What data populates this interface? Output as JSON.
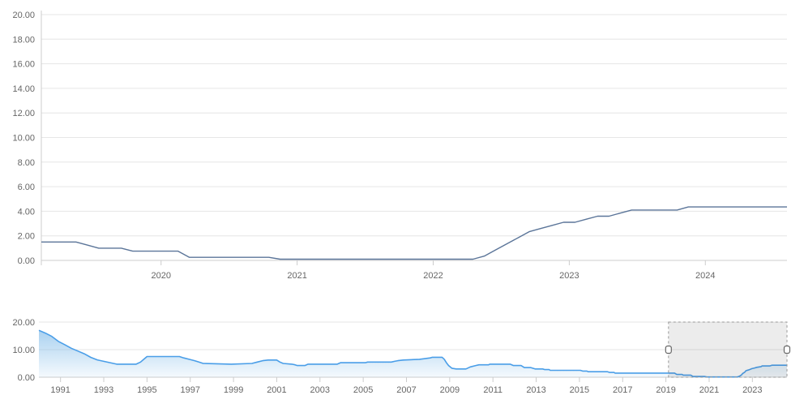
{
  "colors": {
    "background": "#ffffff",
    "main_line": "#5b7599",
    "nav_line": "#4a9ee8",
    "nav_fill_top": "rgba(125,185,232,0.65)",
    "nav_fill_bottom": "rgba(125,185,232,0.08)",
    "gridline": "#e6e6e6",
    "axis_line": "#cccccc",
    "tick_label": "#666666",
    "selection_fill": "rgba(40,40,40,0.09)",
    "selection_border": "#999999",
    "handle_fill": "#ffffff",
    "handle_border": "#666666"
  },
  "chart_data": {
    "type": "line",
    "title": "",
    "legend": "none",
    "grid": "on",
    "main_chart": {
      "type": "line",
      "x_range": [
        2019.12,
        2024.6
      ],
      "ylim": [
        0,
        20
      ],
      "y_ticks": [
        {
          "value": 0,
          "label": "0.00"
        },
        {
          "value": 2,
          "label": "2.00"
        },
        {
          "value": 4,
          "label": "4.00"
        },
        {
          "value": 6,
          "label": "6.00"
        },
        {
          "value": 8,
          "label": "8.00"
        },
        {
          "value": 10,
          "label": "10.00"
        },
        {
          "value": 12,
          "label": "12.00"
        },
        {
          "value": 14,
          "label": "14.00"
        },
        {
          "value": 16,
          "label": "16.00"
        },
        {
          "value": 18,
          "label": "18.00"
        },
        {
          "value": 20,
          "label": "20.00"
        }
      ],
      "x_ticks": [
        {
          "value": 2020,
          "label": "2020"
        },
        {
          "value": 2021,
          "label": "2021"
        },
        {
          "value": 2022,
          "label": "2022"
        },
        {
          "value": 2023,
          "label": "2023"
        },
        {
          "value": 2024,
          "label": "2024"
        }
      ],
      "points": [
        [
          2019.12,
          1.5
        ],
        [
          2019.375,
          1.5
        ],
        [
          2019.458,
          1.25
        ],
        [
          2019.542,
          1.0
        ],
        [
          2019.708,
          1.0
        ],
        [
          2019.792,
          0.75
        ],
        [
          2020.125,
          0.75
        ],
        [
          2020.208,
          0.25
        ],
        [
          2020.792,
          0.25
        ],
        [
          2020.875,
          0.1
        ],
        [
          2022.292,
          0.1
        ],
        [
          2022.375,
          0.35
        ],
        [
          2022.458,
          0.85
        ],
        [
          2022.542,
          1.35
        ],
        [
          2022.625,
          1.85
        ],
        [
          2022.708,
          2.35
        ],
        [
          2022.792,
          2.6
        ],
        [
          2022.875,
          2.85
        ],
        [
          2022.958,
          3.1
        ],
        [
          2023.042,
          3.1
        ],
        [
          2023.125,
          3.35
        ],
        [
          2023.208,
          3.6
        ],
        [
          2023.292,
          3.6
        ],
        [
          2023.375,
          3.85
        ],
        [
          2023.458,
          4.1
        ],
        [
          2023.792,
          4.1
        ],
        [
          2023.875,
          4.35
        ],
        [
          2024.6,
          4.35
        ]
      ]
    },
    "navigator": {
      "type": "area",
      "x_range": [
        1990.0,
        2024.6
      ],
      "ylim": [
        0,
        20
      ],
      "y_ticks": [
        {
          "value": 0,
          "label": "0.00"
        },
        {
          "value": 10,
          "label": "10.00"
        },
        {
          "value": 20,
          "label": "20.00"
        }
      ],
      "x_ticks": [
        {
          "value": 1991,
          "label": "1991"
        },
        {
          "value": 1993,
          "label": "1993"
        },
        {
          "value": 1995,
          "label": "1995"
        },
        {
          "value": 1997,
          "label": "1997"
        },
        {
          "value": 1999,
          "label": "1999"
        },
        {
          "value": 2001,
          "label": "2001"
        },
        {
          "value": 2003,
          "label": "2003"
        },
        {
          "value": 2005,
          "label": "2005"
        },
        {
          "value": 2007,
          "label": "2007"
        },
        {
          "value": 2009,
          "label": "2009"
        },
        {
          "value": 2011,
          "label": "2011"
        },
        {
          "value": 2013,
          "label": "2013"
        },
        {
          "value": 2015,
          "label": "2015"
        },
        {
          "value": 2017,
          "label": "2017"
        },
        {
          "value": 2019,
          "label": "2019"
        },
        {
          "value": 2021,
          "label": "2021"
        },
        {
          "value": 2023,
          "label": "2023"
        }
      ],
      "selected_range": [
        2019.12,
        2024.6
      ],
      "points": [
        [
          1990.0,
          17.0
        ],
        [
          1990.3,
          16.0
        ],
        [
          1990.6,
          14.8
        ],
        [
          1990.9,
          13.0
        ],
        [
          1991.2,
          11.8
        ],
        [
          1991.5,
          10.5
        ],
        [
          1991.8,
          9.5
        ],
        [
          1992.1,
          8.5
        ],
        [
          1992.4,
          7.2
        ],
        [
          1992.7,
          6.3
        ],
        [
          1993.0,
          5.75
        ],
        [
          1993.3,
          5.25
        ],
        [
          1993.6,
          4.75
        ],
        [
          1994.5,
          4.75
        ],
        [
          1994.7,
          5.5
        ],
        [
          1994.85,
          6.5
        ],
        [
          1995.0,
          7.5
        ],
        [
          1996.5,
          7.5
        ],
        [
          1996.7,
          7.0
        ],
        [
          1996.95,
          6.5
        ],
        [
          1997.2,
          6.0
        ],
        [
          1997.4,
          5.5
        ],
        [
          1997.6,
          5.0
        ],
        [
          1998.9,
          4.75
        ],
        [
          1999.85,
          5.0
        ],
        [
          2000.1,
          5.5
        ],
        [
          2000.35,
          6.0
        ],
        [
          2000.6,
          6.25
        ],
        [
          2001.0,
          6.25
        ],
        [
          2001.15,
          5.5
        ],
        [
          2001.3,
          5.0
        ],
        [
          2001.7,
          4.75
        ],
        [
          2001.85,
          4.5
        ],
        [
          2001.95,
          4.25
        ],
        [
          2002.3,
          4.25
        ],
        [
          2002.45,
          4.75
        ],
        [
          2003.8,
          4.75
        ],
        [
          2003.95,
          5.25
        ],
        [
          2005.1,
          5.25
        ],
        [
          2005.2,
          5.5
        ],
        [
          2006.3,
          5.5
        ],
        [
          2006.45,
          5.75
        ],
        [
          2006.6,
          6.0
        ],
        [
          2006.85,
          6.25
        ],
        [
          2007.6,
          6.5
        ],
        [
          2007.85,
          6.75
        ],
        [
          2008.1,
          7.0
        ],
        [
          2008.2,
          7.25
        ],
        [
          2008.65,
          7.25
        ],
        [
          2008.75,
          6.5
        ],
        [
          2008.85,
          5.25
        ],
        [
          2008.95,
          4.25
        ],
        [
          2009.1,
          3.25
        ],
        [
          2009.3,
          3.0
        ],
        [
          2009.75,
          3.0
        ],
        [
          2009.95,
          3.75
        ],
        [
          2010.2,
          4.25
        ],
        [
          2010.35,
          4.5
        ],
        [
          2010.8,
          4.5
        ],
        [
          2010.85,
          4.75
        ],
        [
          2011.8,
          4.75
        ],
        [
          2011.95,
          4.25
        ],
        [
          2012.3,
          4.25
        ],
        [
          2012.45,
          3.5
        ],
        [
          2012.75,
          3.5
        ],
        [
          2012.95,
          3.0
        ],
        [
          2013.3,
          3.0
        ],
        [
          2013.4,
          2.75
        ],
        [
          2013.6,
          2.75
        ],
        [
          2013.65,
          2.5
        ],
        [
          2015.05,
          2.5
        ],
        [
          2015.15,
          2.25
        ],
        [
          2015.35,
          2.25
        ],
        [
          2015.4,
          2.0
        ],
        [
          2016.3,
          2.0
        ],
        [
          2016.4,
          1.75
        ],
        [
          2016.6,
          1.75
        ],
        [
          2016.65,
          1.5
        ],
        [
          2019.4,
          1.5
        ],
        [
          2019.5,
          1.0
        ],
        [
          2019.75,
          1.0
        ],
        [
          2019.8,
          0.75
        ],
        [
          2020.15,
          0.75
        ],
        [
          2020.25,
          0.25
        ],
        [
          2020.8,
          0.25
        ],
        [
          2020.9,
          0.1
        ],
        [
          2022.3,
          0.1
        ],
        [
          2022.4,
          0.35
        ],
        [
          2022.5,
          0.85
        ],
        [
          2022.55,
          1.35
        ],
        [
          2022.65,
          1.85
        ],
        [
          2022.7,
          2.35
        ],
        [
          2022.8,
          2.6
        ],
        [
          2022.9,
          2.85
        ],
        [
          2022.96,
          3.1
        ],
        [
          2023.1,
          3.35
        ],
        [
          2023.2,
          3.6
        ],
        [
          2023.4,
          3.85
        ],
        [
          2023.45,
          4.1
        ],
        [
          2023.8,
          4.1
        ],
        [
          2023.9,
          4.35
        ],
        [
          2024.6,
          4.35
        ]
      ]
    }
  }
}
